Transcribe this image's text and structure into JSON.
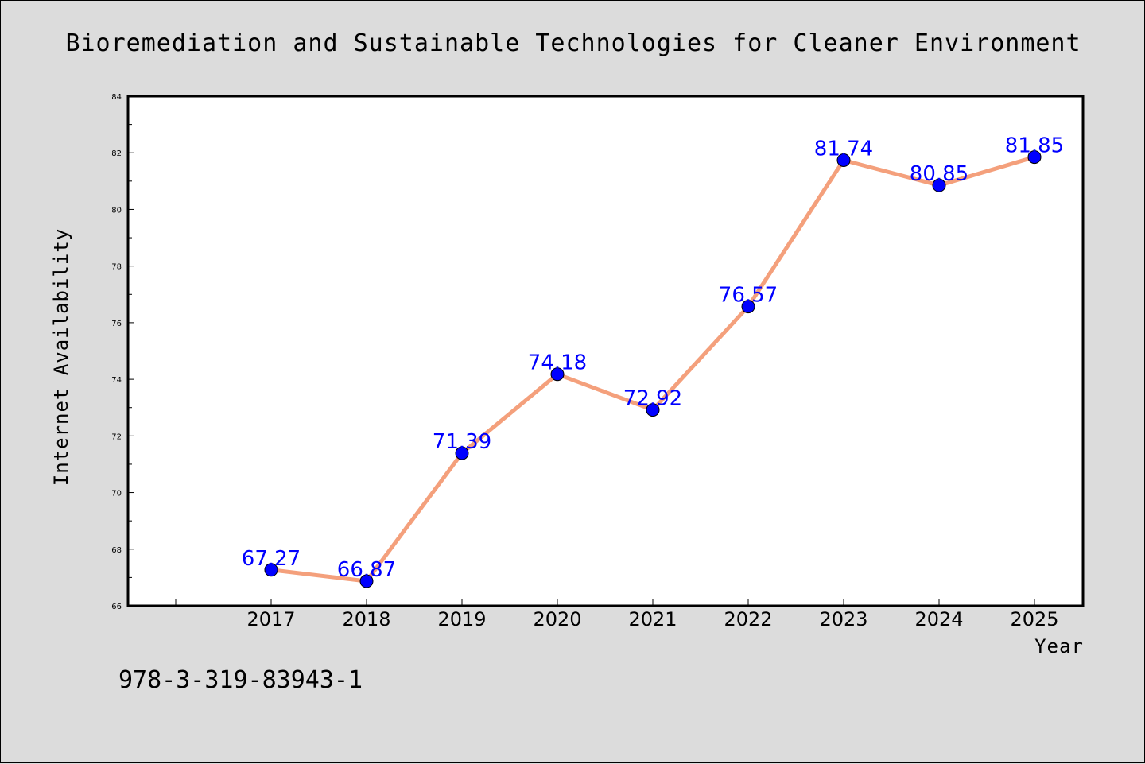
{
  "chart_data": {
    "type": "line",
    "title": "Bioremediation and Sustainable Technologies for Cleaner Environment",
    "xlabel": "Year",
    "ylabel": "Internet Availability",
    "categories": [
      "2017",
      "2018",
      "2019",
      "2020",
      "2021",
      "2022",
      "2023",
      "2024",
      "2025"
    ],
    "values": [
      67.27,
      66.87,
      71.39,
      74.18,
      72.92,
      76.57,
      81.74,
      80.85,
      81.85
    ],
    "data_labels": [
      "67.27",
      "66.87",
      "71.39",
      "74.18",
      "72.92",
      "76.57",
      "81.74",
      "80.85",
      "81.85"
    ],
    "yticks": [
      "66",
      "68",
      "70",
      "72",
      "74",
      "76",
      "78",
      "80",
      "82",
      "84"
    ],
    "ylim": [
      66,
      84
    ],
    "grid": false,
    "legend": "none",
    "line_color": "#f4a07c",
    "marker_color": "#0000ff",
    "label_color": "#0000ff"
  },
  "footnote": "978-3-319-83943-1"
}
